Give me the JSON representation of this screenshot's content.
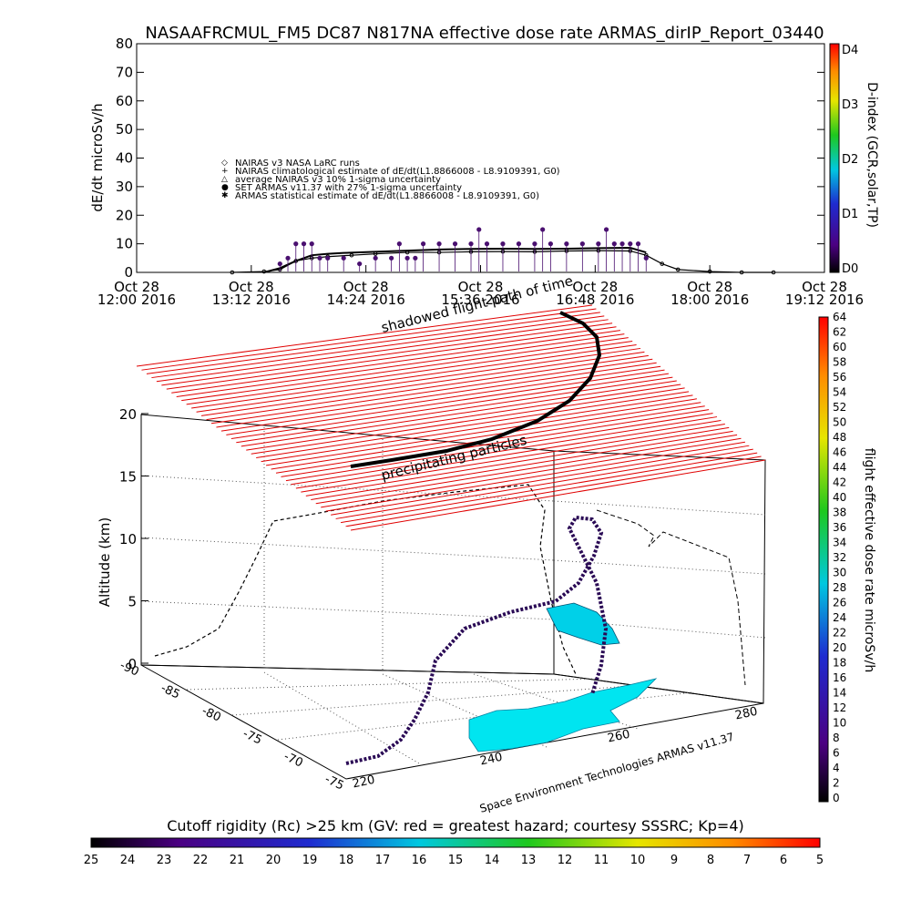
{
  "figure": {
    "title": "NASAAFRCMUL_FM5 DC87 N817NA effective dose rate ARMAS_dirIP_Report_03440",
    "credit": "Space Environment Technologies ARMAS v11.37",
    "colors": {
      "black": "#000000",
      "armas_blue": "#1e1ea0",
      "purple": "#4a1070",
      "red": "#e00000",
      "cyan": "#00e5f0"
    }
  },
  "chart_data": [
    {
      "type": "line",
      "id": "dose-rate-timeseries",
      "ylabel": "dE/dt microSv/h",
      "ylim": [
        0,
        80
      ],
      "yticks": [
        "0",
        "10",
        "20",
        "30",
        "40",
        "50",
        "60",
        "70",
        "80"
      ],
      "x_tick_labels": [
        [
          "Oct 28",
          "12:00 2016"
        ],
        [
          "Oct 28",
          "13:12 2016"
        ],
        [
          "Oct 28",
          "14:24 2016"
        ],
        [
          "Oct 28",
          "15:36 2016"
        ],
        [
          "Oct 28",
          "16:48 2016"
        ],
        [
          "Oct 28",
          "18:00 2016"
        ],
        [
          "Oct 28",
          "19:12 2016"
        ]
      ],
      "xlim_minutes": [
        0,
        432
      ],
      "legend": {
        "placement": "upper-left",
        "entries": [
          {
            "symbol": "◇",
            "label": "NAIRAS v3 NASA LaRC runs"
          },
          {
            "symbol": "+",
            "label": "NAIRAS climatological estimate of dE/dt(L1.8866008 - L8.9109391, G0)"
          },
          {
            "symbol": "△",
            "label": "average NAIRAS v3 10% 1-sigma uncertainty"
          },
          {
            "symbol": "●",
            "label": "SET ARMAS v11.37 with 27% 1-sigma uncertainty"
          },
          {
            "symbol": "✱",
            "label": "ARMAS statistical estimate of dE/dt(L1.8866008 - L8.9109391, G0)"
          }
        ]
      },
      "series": [
        {
          "name": "NAIRAS v3 NASA LaRC runs",
          "x": [
            60,
            80,
            90,
            100,
            110,
            120,
            135,
            150,
            170,
            190,
            210,
            230,
            250,
            270,
            290,
            310,
            320,
            330,
            340,
            360,
            380,
            400
          ],
          "y": [
            0,
            0.3,
            1,
            4,
            5,
            5.5,
            6,
            6.5,
            7,
            7,
            7.2,
            7.3,
            7.2,
            7.5,
            7.6,
            7.5,
            6,
            3,
            1,
            0.3,
            0,
            0
          ]
        },
        {
          "name": "ARMAS statistical estimate of dE/dt(L1.8866008 - L8.9109391, G0)",
          "x": [
            80,
            90,
            100,
            110,
            120,
            130,
            150,
            170,
            190,
            210,
            230,
            250,
            270,
            290,
            310,
            320
          ],
          "y": [
            0,
            1.5,
            4,
            6,
            6.5,
            6.8,
            7.2,
            7.6,
            8,
            8.2,
            8.3,
            8.2,
            8.3,
            8.5,
            8.6,
            7
          ]
        },
        {
          "name": "SET ARMAS v11.37 with 27% 1-sigma uncertainty",
          "x": [
            90,
            95,
            100,
            105,
            110,
            115,
            120,
            130,
            140,
            150,
            160,
            165,
            170,
            175,
            180,
            190,
            200,
            210,
            215,
            220,
            230,
            240,
            250,
            255,
            260,
            270,
            280,
            290,
            295,
            300,
            305,
            310,
            315,
            320
          ],
          "y": [
            3,
            5,
            10,
            10,
            10,
            5,
            5,
            5,
            3,
            5,
            5,
            10,
            5,
            5,
            10,
            10,
            10,
            10,
            15,
            10,
            10,
            10,
            10,
            15,
            10,
            10,
            10,
            10,
            15,
            10,
            10,
            10,
            10,
            5
          ]
        }
      ],
      "secondary_axis": {
        "label": "D-index (GCR,solar,TP)",
        "colorbar_labels": [
          "D0",
          "D1",
          "D2",
          "D3",
          "D4"
        ]
      }
    },
    {
      "type": "scatter",
      "id": "flight-path-3d",
      "zlabel": "Altitude (km)",
      "zticks": [
        "0",
        "5",
        "10",
        "15",
        "20"
      ],
      "lat_ticks": [
        "-90",
        "-85",
        "-80",
        "-75",
        "-70",
        "-75"
      ],
      "lon_ticks": [
        "220",
        "240",
        "260",
        "280"
      ],
      "annotations": [
        "shadowed flight path of time",
        "precipitating particles"
      ],
      "colorbar": {
        "label": "flight effective dose rate microSv/h",
        "labels": [
          "0",
          "2",
          "4",
          "6",
          "8",
          "10",
          "12",
          "14",
          "16",
          "18",
          "20",
          "22",
          "24",
          "26",
          "28",
          "30",
          "32",
          "34",
          "36",
          "38",
          "40",
          "42",
          "44",
          "46",
          "48",
          "50",
          "52",
          "54",
          "56",
          "58",
          "60",
          "62",
          "64"
        ]
      }
    },
    {
      "type": "heatmap",
      "id": "cutoff-rigidity-colorbar",
      "title": "Cutoff rigidity (Rc) >25 km (GV: red = greatest hazard; courtesy SSSRC; Kp=4)",
      "labels": [
        "25",
        "24",
        "23",
        "22",
        "21",
        "20",
        "19",
        "18",
        "17",
        "16",
        "15",
        "14",
        "13",
        "12",
        "11",
        "10",
        "9",
        "8",
        "7",
        "6",
        "5"
      ]
    }
  ]
}
